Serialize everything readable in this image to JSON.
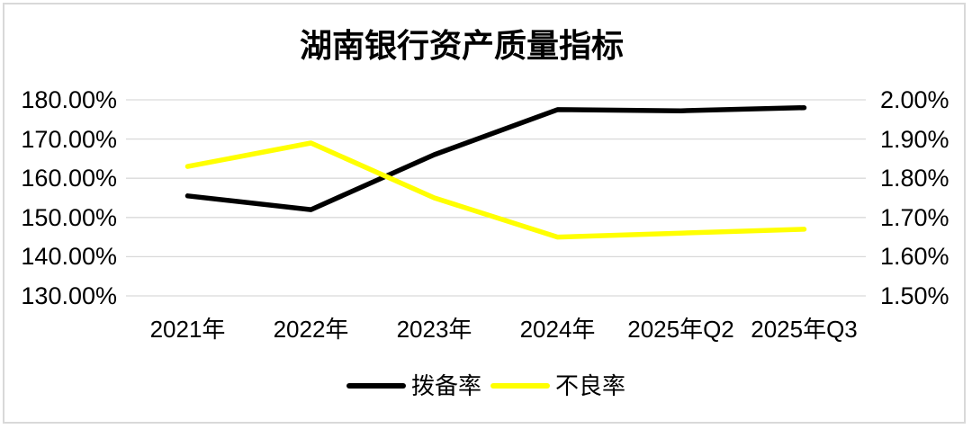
{
  "chart": {
    "title": "湖南银行资产质量指标"
  },
  "chart_data": {
    "type": "line",
    "title": "湖南银行资产质量指标",
    "categories": [
      "2021年",
      "2022年",
      "2023年",
      "2024年",
      "2025年Q2",
      "2025年Q3"
    ],
    "series": [
      {
        "name": "拨备率",
        "axis": "left",
        "color": "#000000",
        "values": [
          155.5,
          152.0,
          166.0,
          177.5,
          177.2,
          178.0
        ]
      },
      {
        "name": "不良率",
        "axis": "right",
        "color": "#ffff00",
        "values": [
          1.83,
          1.89,
          1.75,
          1.65,
          1.66,
          1.67
        ]
      }
    ],
    "left_axis": {
      "min": 130,
      "max": 180,
      "step": 10,
      "tick_labels": [
        "180.00%",
        "170.00%",
        "160.00%",
        "150.00%",
        "140.00%",
        "130.00%"
      ]
    },
    "right_axis": {
      "min": 1.5,
      "max": 2.0,
      "step": 0.1,
      "tick_labels": [
        "2.00%",
        "1.90%",
        "1.80%",
        "1.70%",
        "1.60%",
        "1.50%"
      ]
    },
    "grid": true,
    "gridline_color": "#d9d9d9",
    "frame_color": "#d9d9d9",
    "legend_position": "bottom"
  }
}
